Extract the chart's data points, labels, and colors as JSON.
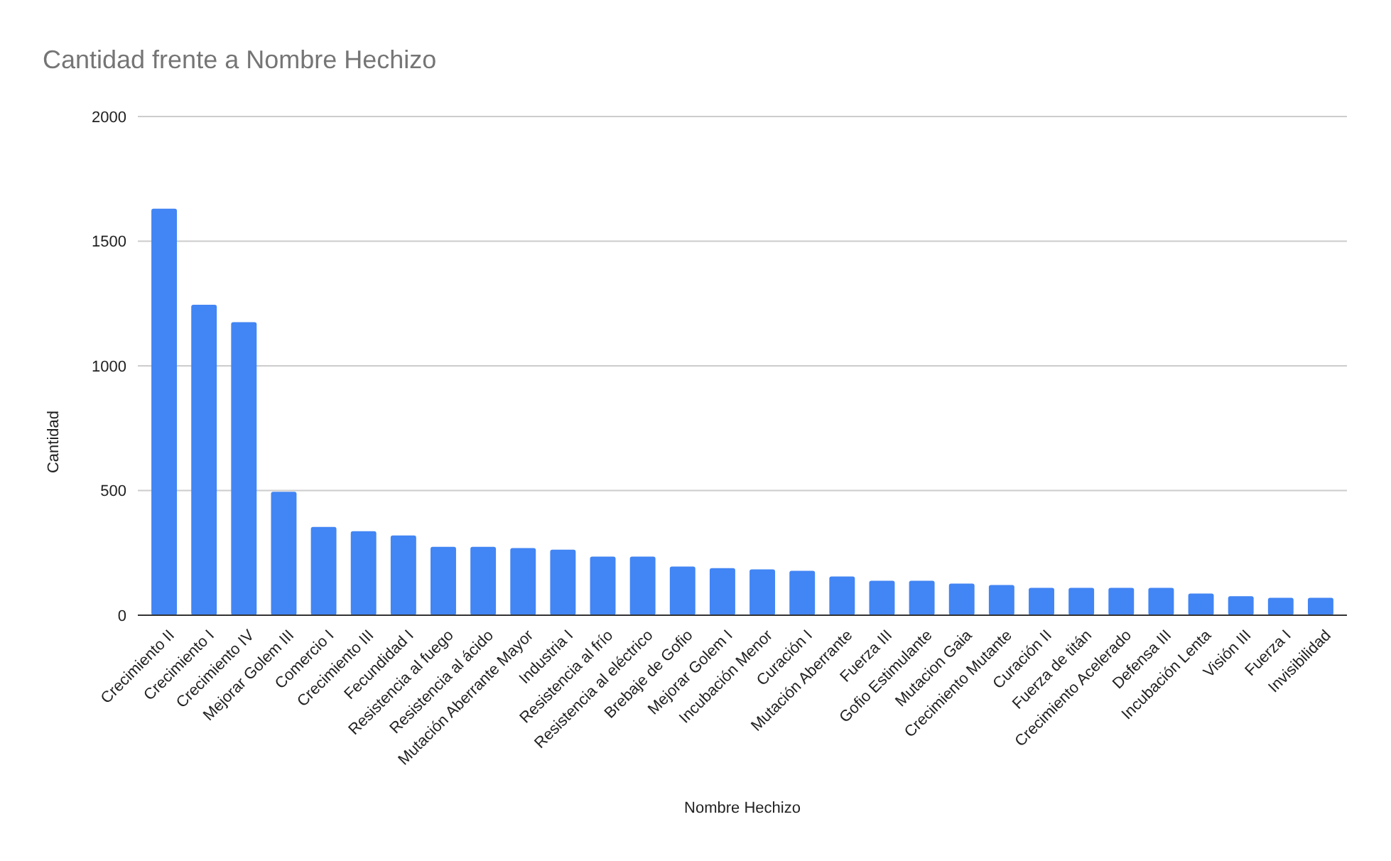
{
  "chart_data": {
    "type": "bar",
    "title": "Cantidad frente a Nombre Hechizo",
    "xlabel": "Nombre Hechizo",
    "ylabel": "Cantidad",
    "categories": [
      "Crecimiento II",
      "Crecimiento I",
      "Crecimiento IV",
      "Mejorar Golem III",
      "Comercio I",
      "Crecimiento III",
      "Fecundidad I",
      "Resistencia al fuego",
      "Resistencia al ácido",
      "Mutación Aberrante Mayor",
      "Industria I",
      "Resistencia al frío",
      "Resistencia al eléctrico",
      "Brebaje de Gofio",
      "Mejorar Golem I",
      "Incubación Menor",
      "Curación I",
      "Mutación Aberrante",
      "Fuerza III",
      "Gofio Estimulante",
      "Mutacion Gaia",
      "Crecimiento Mutante",
      "Curación II",
      "Fuerza de titán",
      "Crecimiento Acelerado",
      "Defensa III",
      "Incubación Lenta",
      "Visión III",
      "Fuerza I",
      "Invisibilidad"
    ],
    "values": [
      1630,
      1245,
      1175,
      495,
      354,
      337,
      320,
      274,
      274,
      269,
      263,
      235,
      235,
      195,
      189,
      184,
      178,
      155,
      138,
      138,
      127,
      121,
      110,
      110,
      110,
      110,
      87,
      76,
      70,
      70
    ],
    "color": "#4285f4",
    "ylim": [
      0,
      2000
    ],
    "yticks": [
      0,
      500,
      1000,
      1500,
      2000
    ],
    "grid": "y"
  }
}
